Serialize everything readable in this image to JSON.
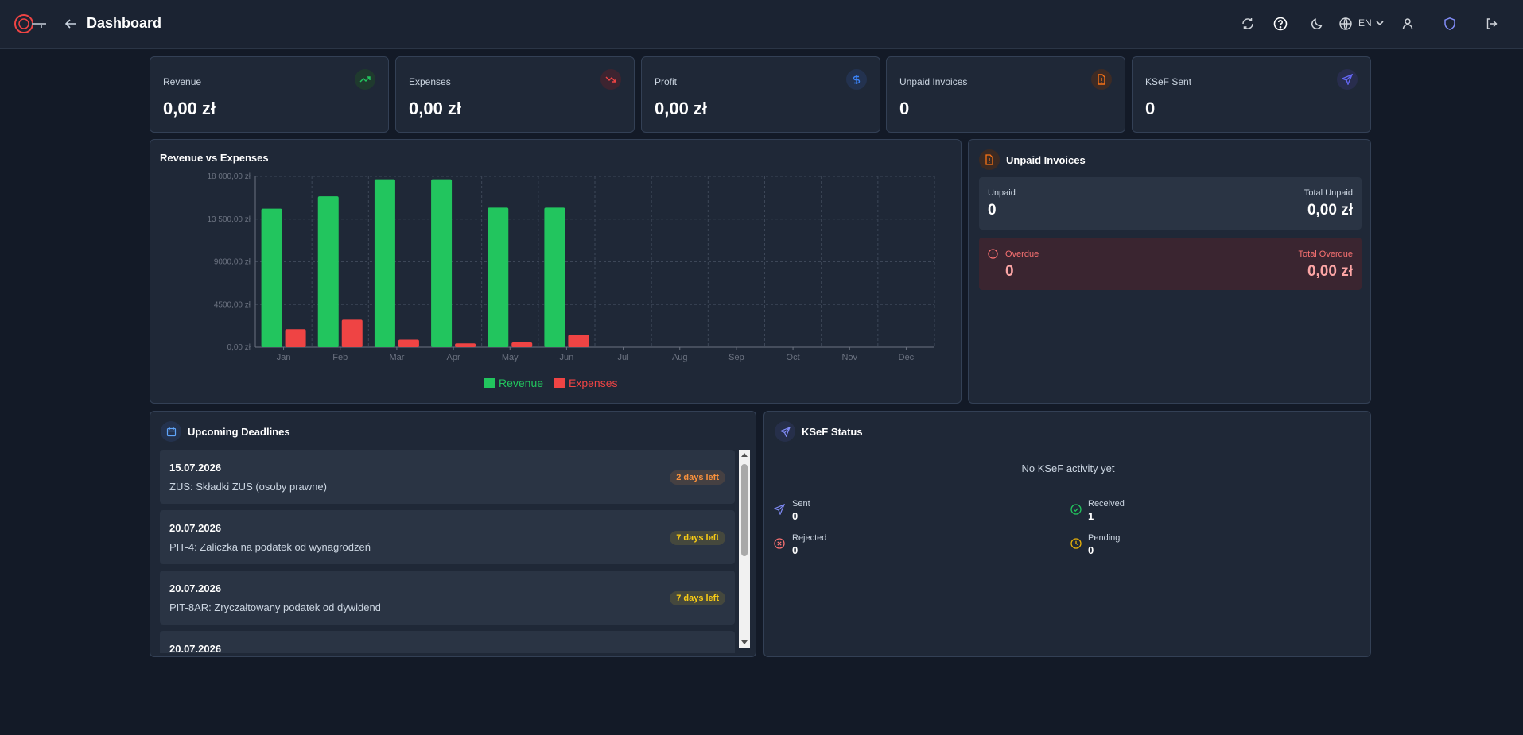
{
  "header": {
    "title": "Dashboard",
    "language": "EN"
  },
  "stats": [
    {
      "label": "Revenue",
      "value": "0,00 zł",
      "icon": "trending-up-icon",
      "color": "#22c55e"
    },
    {
      "label": "Expenses",
      "value": "0,00 zł",
      "icon": "trending-down-icon",
      "color": "#ef4444"
    },
    {
      "label": "Profit",
      "value": "0,00 zł",
      "icon": "dollar-icon",
      "color": "#3b82f6"
    },
    {
      "label": "Unpaid Invoices",
      "value": "0",
      "icon": "invoice-icon",
      "color": "#f97316"
    },
    {
      "label": "KSeF Sent",
      "value": "0",
      "icon": "send-icon",
      "color": "#6366f1"
    }
  ],
  "chart_panel": {
    "title": "Revenue vs Expenses"
  },
  "chart_data": {
    "type": "bar",
    "categories": [
      "Jan",
      "Feb",
      "Mar",
      "Apr",
      "May",
      "Jun",
      "Jul",
      "Aug",
      "Sep",
      "Oct",
      "Nov",
      "Dec"
    ],
    "series": [
      {
        "name": "Revenue",
        "color": "#22c55e",
        "values": [
          14600,
          15900,
          17700,
          17700,
          14700,
          14700,
          0,
          0,
          0,
          0,
          0,
          0
        ]
      },
      {
        "name": "Expenses",
        "color": "#ef4444",
        "values": [
          1900,
          2900,
          800,
          400,
          500,
          1300,
          0,
          0,
          0,
          0,
          0,
          0
        ]
      }
    ],
    "yticks": [
      "0,00 zł",
      "4500,00 zł",
      "9000,00 zł",
      "13 500,00 zł",
      "18 000,00 zł"
    ],
    "ylim": [
      0,
      18000
    ],
    "grid": true,
    "legend": "bottom"
  },
  "unpaid": {
    "title": "Unpaid Invoices",
    "unpaid_label": "Unpaid",
    "unpaid_value": "0",
    "total_unpaid_label": "Total Unpaid",
    "total_unpaid_value": "0,00 zł",
    "overdue_label": "Overdue",
    "overdue_value": "0",
    "total_overdue_label": "Total Overdue",
    "total_overdue_value": "0,00 zł"
  },
  "deadlines": {
    "title": "Upcoming Deadlines",
    "items": [
      {
        "date": "15.07.2026",
        "desc": "ZUS: Składki ZUS (osoby prawne)",
        "badge": "2 days left",
        "badge_color": "#fb923c"
      },
      {
        "date": "20.07.2026",
        "desc": "PIT-4: Zaliczka na podatek od wynagrodzeń",
        "badge": "7 days left",
        "badge_color": "#facc15"
      },
      {
        "date": "20.07.2026",
        "desc": "PIT-8AR: Zryczałtowany podatek od dywidend",
        "badge": "7 days left",
        "badge_color": "#facc15"
      },
      {
        "date": "20.07.2026",
        "desc": "",
        "badge": "",
        "badge_color": "#facc15"
      }
    ]
  },
  "ksef": {
    "title": "KSeF Status",
    "empty": "No KSeF activity yet",
    "sent_label": "Sent",
    "sent_value": "0",
    "received_label": "Received",
    "received_value": "1",
    "rejected_label": "Rejected",
    "rejected_value": "0",
    "pending_label": "Pending",
    "pending_value": "0"
  }
}
